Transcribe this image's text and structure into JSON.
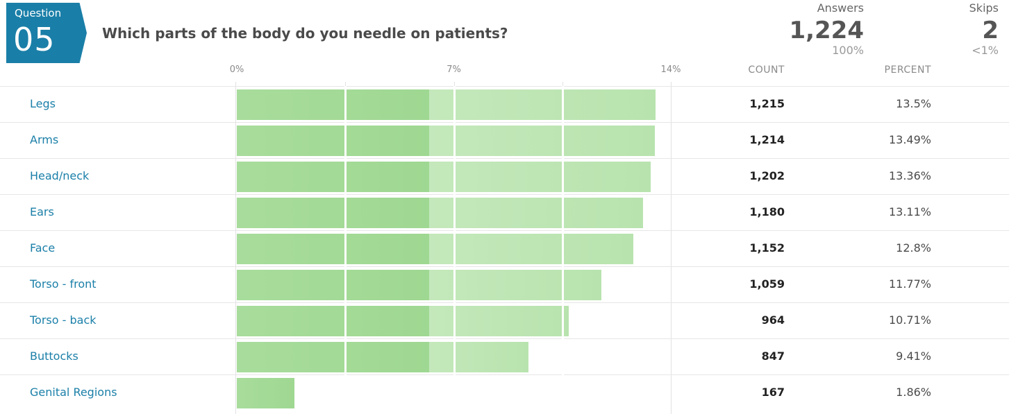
{
  "question": {
    "badge_label": "Question",
    "number": "05",
    "text": "Which parts of the body do you needle on patients?"
  },
  "stats": {
    "answers_label": "Answers",
    "answers_value": "1,224",
    "answers_pct": "100%",
    "skips_label": "Skips",
    "skips_value": "2",
    "skips_pct": "<1%"
  },
  "columns": {
    "count": "COUNT",
    "percent": "PERCENT"
  },
  "colors": {
    "brand": "#1a7fa8",
    "bar": "#a8dc9c"
  },
  "chart_data": {
    "type": "bar",
    "orientation": "horizontal",
    "x_ticks": [
      "0%",
      "7%",
      "14%"
    ],
    "xlim": [
      0,
      14
    ],
    "categories": [
      "Legs",
      "Arms",
      "Head/neck",
      "Ears",
      "Face",
      "Torso - front",
      "Torso - back",
      "Buttocks",
      "Genital Regions"
    ],
    "counts": [
      "1,215",
      "1,214",
      "1,202",
      "1,180",
      "1,152",
      "1,059",
      "964",
      "847",
      "167"
    ],
    "percent_labels": [
      "13.5%",
      "13.49%",
      "13.36%",
      "13.11%",
      "12.8%",
      "11.77%",
      "10.71%",
      "9.41%",
      "1.86%"
    ],
    "values": [
      13.5,
      13.49,
      13.36,
      13.11,
      12.8,
      11.77,
      10.71,
      9.41,
      1.86
    ],
    "grid": true
  }
}
